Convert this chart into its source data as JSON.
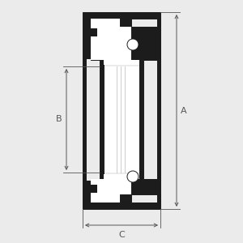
{
  "bg_color": "#ebebeb",
  "black": "#1c1c1c",
  "white": "#ffffff",
  "gray_light": "#d8d8d8",
  "dim_color": "#555555",
  "label_A": "A",
  "label_B": "B",
  "label_C": "C",
  "figsize": [
    3.0,
    3.0
  ],
  "dpi": 100
}
